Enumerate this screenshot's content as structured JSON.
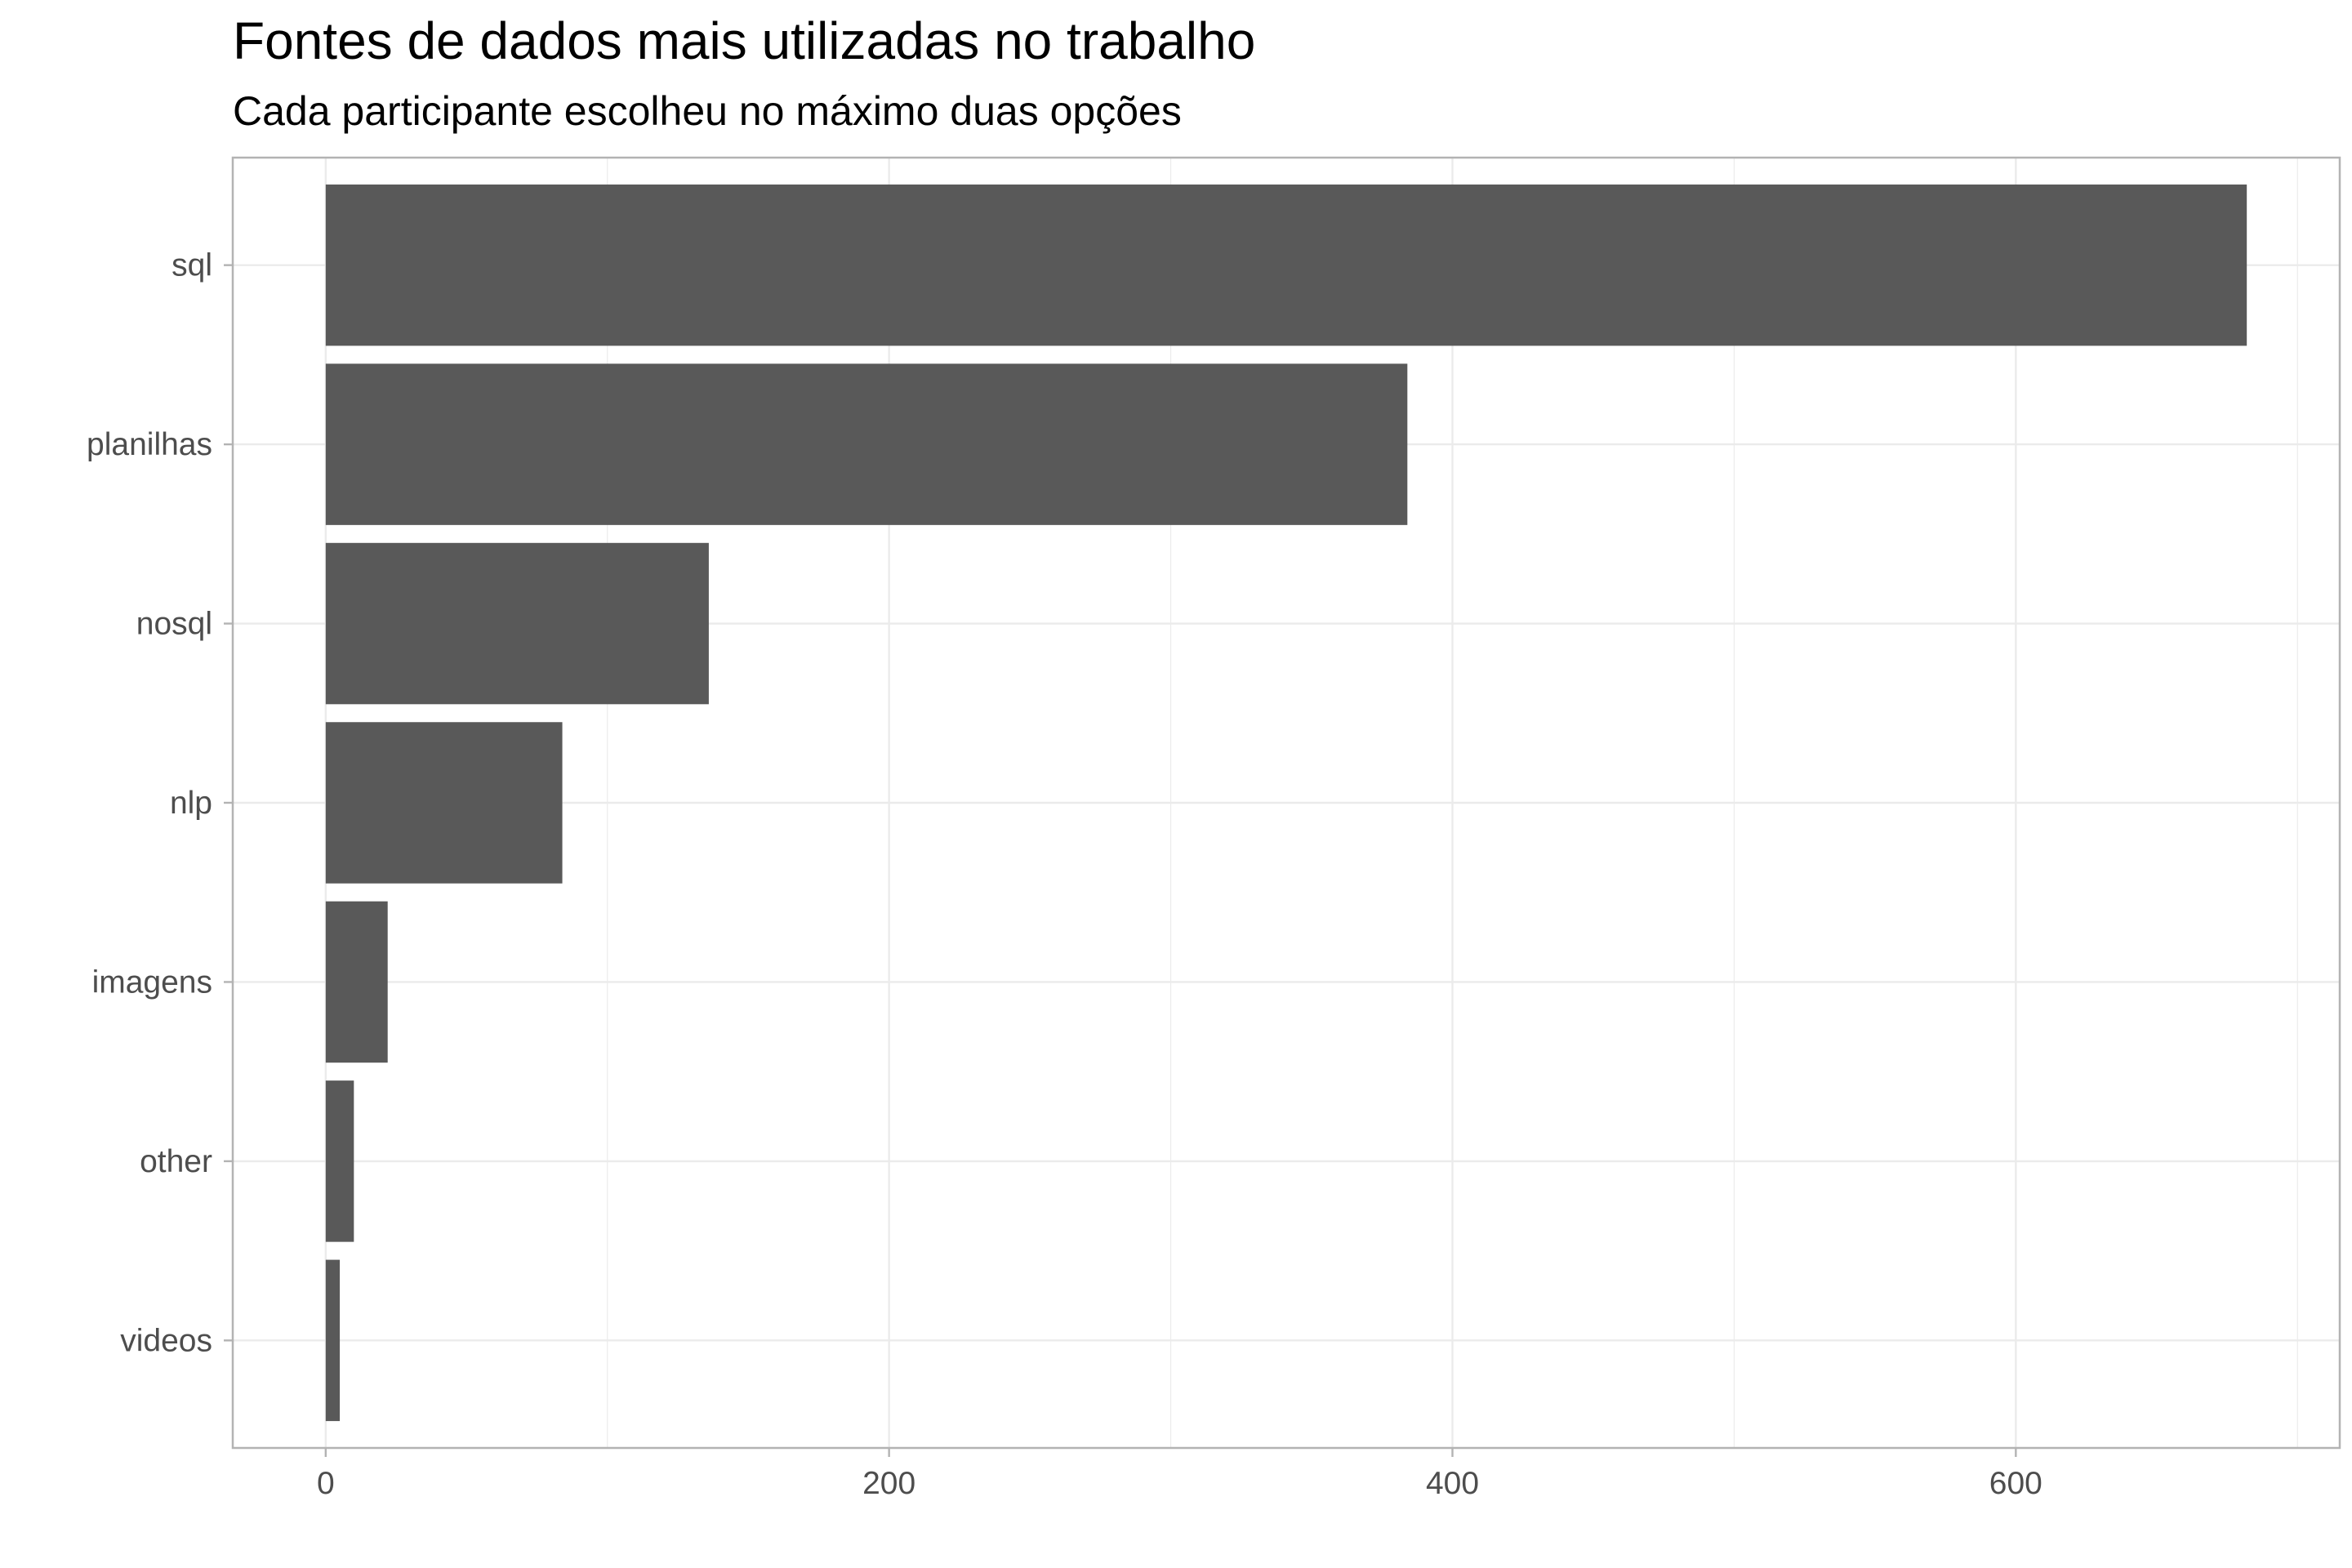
{
  "chart_data": {
    "type": "bar",
    "orientation": "horizontal",
    "title": "Fontes de dados mais utilizadas no trabalho",
    "subtitle": "Cada participante escolheu no máximo duas opções",
    "xlabel": "",
    "ylabel": "",
    "categories": [
      "sql",
      "planilhas",
      "nosql",
      "nlp",
      "imagens",
      "other",
      "videos"
    ],
    "values": [
      682,
      384,
      136,
      84,
      22,
      10,
      5
    ],
    "xlim": [
      -33,
      715
    ],
    "x_ticks": [
      0,
      200,
      400,
      600
    ],
    "x_tick_labels": [
      "0",
      "200",
      "400",
      "600"
    ],
    "grid": true,
    "bar_color": "#595959",
    "grid_color": "#ebebeb",
    "panel_border_color": "#b3b3b3"
  }
}
